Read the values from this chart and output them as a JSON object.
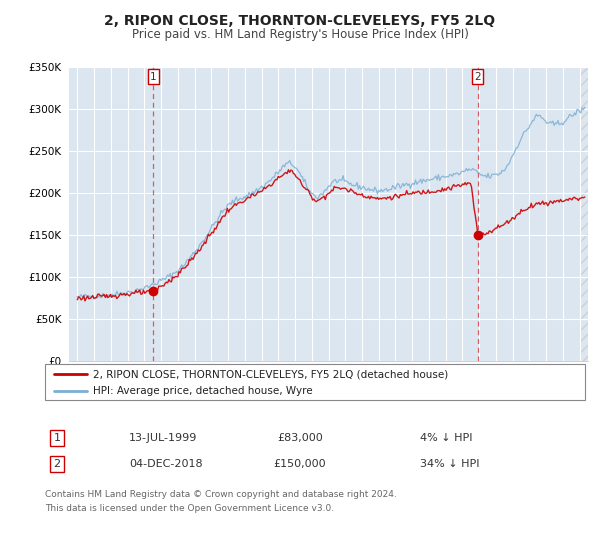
{
  "title": "2, RIPON CLOSE, THORNTON-CLEVELEYS, FY5 2LQ",
  "subtitle": "Price paid vs. HM Land Registry's House Price Index (HPI)",
  "background_color": "#ffffff",
  "plot_bg_color": "#dce6f0",
  "grid_color": "#ffffff",
  "hpi_color": "#7bafd4",
  "price_color": "#cc0000",
  "ylim": [
    0,
    350000
  ],
  "yticks": [
    0,
    50000,
    100000,
    150000,
    200000,
    250000,
    300000,
    350000
  ],
  "ytick_labels": [
    "£0",
    "£50K",
    "£100K",
    "£150K",
    "£200K",
    "£250K",
    "£300K",
    "£350K"
  ],
  "xmin": 1994.5,
  "xmax": 2025.5,
  "sale1_x": 1999.54,
  "sale1_y": 83000,
  "sale1_label": "1",
  "sale1_date": "13-JUL-1999",
  "sale1_price": "£83,000",
  "sale1_hpi": "4% ↓ HPI",
  "sale2_x": 2018.92,
  "sale2_y": 150000,
  "sale2_label": "2",
  "sale2_date": "04-DEC-2018",
  "sale2_price": "£150,000",
  "sale2_hpi": "34% ↓ HPI",
  "legend_line1": "2, RIPON CLOSE, THORNTON-CLEVELEYS, FY5 2LQ (detached house)",
  "legend_line2": "HPI: Average price, detached house, Wyre",
  "footer1": "Contains HM Land Registry data © Crown copyright and database right 2024.",
  "footer2": "This data is licensed under the Open Government Licence v3.0."
}
